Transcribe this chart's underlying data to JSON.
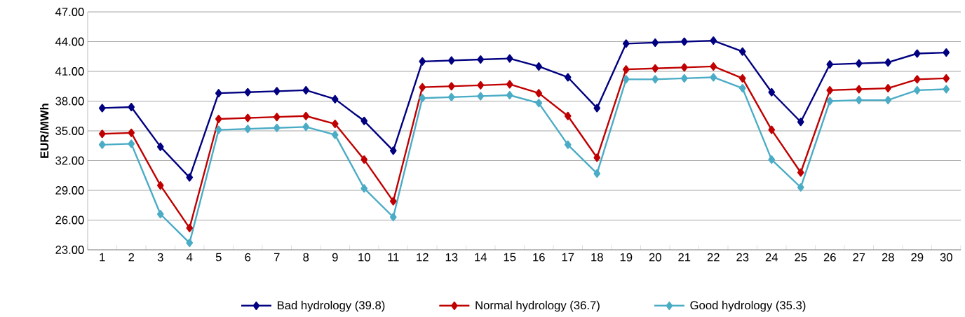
{
  "chart_data": {
    "type": "line",
    "ylabel": "EUR/MWh",
    "categories": [
      "1",
      "2",
      "3",
      "4",
      "5",
      "6",
      "7",
      "8",
      "9",
      "10",
      "11",
      "12",
      "13",
      "14",
      "15",
      "16",
      "17",
      "18",
      "19",
      "20",
      "21",
      "22",
      "23",
      "24",
      "25",
      "26",
      "27",
      "28",
      "29",
      "30"
    ],
    "series": [
      {
        "name": "Bad hydrology (39.8)",
        "color": "#000080",
        "values": [
          37.3,
          37.4,
          33.4,
          30.3,
          38.8,
          38.9,
          39.0,
          39.1,
          38.2,
          36.0,
          33.0,
          42.0,
          42.1,
          42.2,
          42.3,
          41.5,
          40.4,
          37.3,
          43.8,
          43.9,
          44.0,
          44.1,
          43.0,
          38.9,
          35.9,
          41.7,
          41.8,
          41.9,
          42.8,
          42.9
        ]
      },
      {
        "name": "Normal hydrology (36.7)",
        "color": "#c00000",
        "values": [
          34.7,
          34.8,
          29.5,
          25.2,
          36.2,
          36.3,
          36.4,
          36.5,
          35.7,
          32.1,
          27.9,
          39.4,
          39.5,
          39.6,
          39.7,
          38.8,
          36.5,
          32.3,
          41.2,
          41.3,
          41.4,
          41.5,
          40.3,
          35.1,
          30.8,
          39.1,
          39.2,
          39.3,
          40.2,
          40.3
        ]
      },
      {
        "name": "Good hydrology (35.3)",
        "color": "#4bacc6",
        "values": [
          33.6,
          33.7,
          26.6,
          23.7,
          35.1,
          35.2,
          35.3,
          35.4,
          34.6,
          29.2,
          26.3,
          38.3,
          38.4,
          38.5,
          38.6,
          37.8,
          33.6,
          30.7,
          40.2,
          40.2,
          40.3,
          40.4,
          39.3,
          32.1,
          29.3,
          38.0,
          38.1,
          38.1,
          39.1,
          39.2
        ]
      }
    ],
    "ylim": [
      23,
      47
    ],
    "yticks": [
      {
        "value": 23,
        "label": "23.00"
      },
      {
        "value": 26,
        "label": "26.00"
      },
      {
        "value": 29,
        "label": "29.00"
      },
      {
        "value": 32,
        "label": "32.00"
      },
      {
        "value": 35,
        "label": "35.00"
      },
      {
        "value": 38,
        "label": "38.00"
      },
      {
        "value": 41,
        "label": "41.00"
      },
      {
        "value": 44,
        "label": "44.00"
      },
      {
        "value": 47,
        "label": "47.00"
      }
    ],
    "grid": "y",
    "legend": "bottom",
    "marker": "diamond",
    "line_style": "solid"
  }
}
